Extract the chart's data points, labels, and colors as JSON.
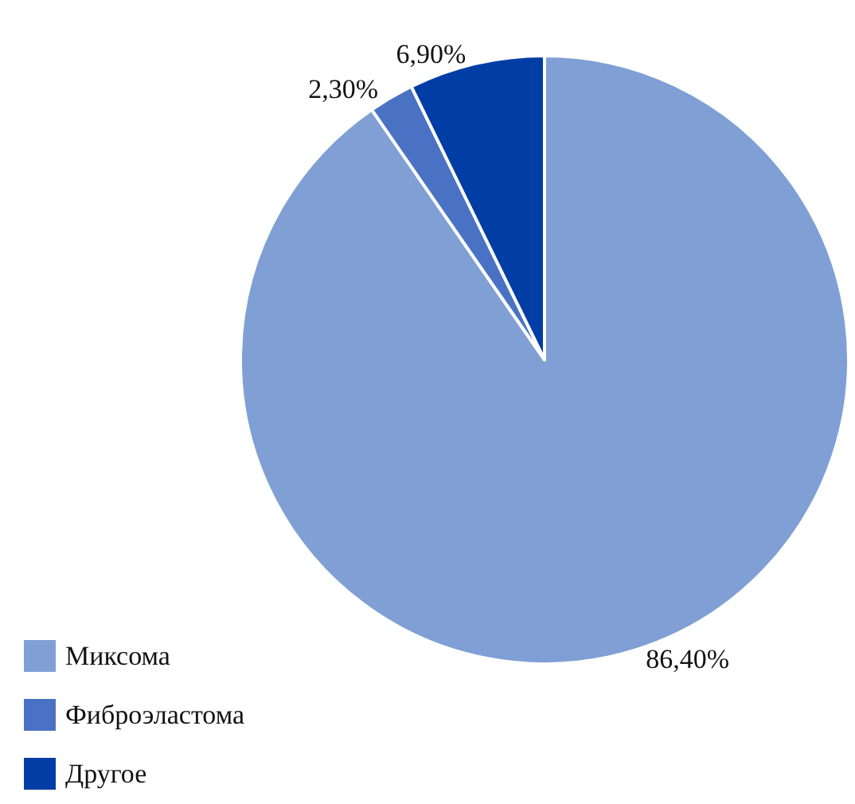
{
  "chart_data": {
    "type": "pie",
    "categories": [
      "Миксома",
      "Фиброэластома",
      "Другое"
    ],
    "values": [
      86.4,
      2.3,
      6.9
    ],
    "colors": [
      "#7f9fd5",
      "#4a72c4",
      "#003da5"
    ],
    "value_labels": [
      "86,40%",
      "2,30%",
      "6,90%"
    ],
    "legend": "bottom left"
  }
}
